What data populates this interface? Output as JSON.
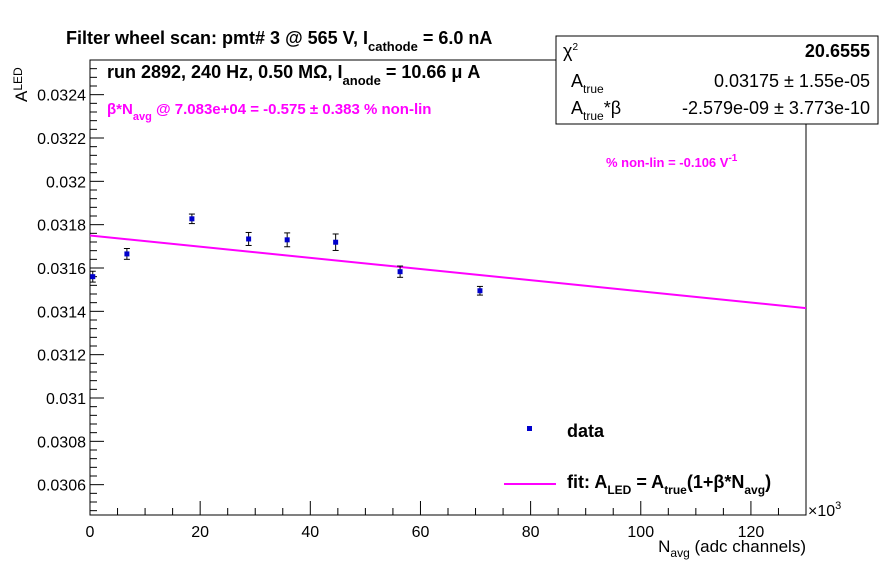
{
  "chart_data": {
    "type": "scatter",
    "title_parts": {
      "line1_a": "Filter wheel scan: pmt#   3 @   565 V, I",
      "line1_sub": "cathode",
      "line1_b": " = 6.0 nA",
      "line2_a": "run 2892, 240 Hz, 0.50 MΩ, I",
      "line2_sub": "anode",
      "line2_b": " = 10.66 μ A"
    },
    "annotation_beta": {
      "a": "β*N",
      "sub": "avg",
      "b": " @ 7.083e+04 = -0.575 ± 0.383 % non-lin"
    },
    "annotation_nonlin": {
      "a": "% non-lin = -0.106 V",
      "sup": "-1"
    },
    "ylabel": {
      "a": "A",
      "sub": "LED"
    },
    "xlabel": {
      "a": "N",
      "sub": "avg",
      "b": " (adc channels)"
    },
    "x_multiplier": "×10",
    "x_multiplier_exp": "3",
    "xlim": [
      0,
      130000
    ],
    "ylim": [
      0.03046,
      0.03256
    ],
    "x_ticks": [
      0,
      20000,
      40000,
      60000,
      80000,
      100000,
      120000
    ],
    "x_tick_labels": [
      "0",
      "20",
      "40",
      "60",
      "80",
      "100",
      "120"
    ],
    "y_ticks": [
      0.0306,
      0.0308,
      0.031,
      0.0312,
      0.0314,
      0.0316,
      0.0318,
      0.032,
      0.0322,
      0.0324
    ],
    "y_tick_labels": [
      "0.0306",
      "0.0308",
      "0.031",
      "0.0312",
      "0.0314",
      "0.0316",
      "0.0318",
      "0.032",
      "0.0322",
      "0.0324"
    ],
    "series": [
      {
        "name": "data",
        "color": "#0000cc",
        "points": [
          {
            "x": 500,
            "y": 0.03156,
            "err": 2.5e-05
          },
          {
            "x": 6700,
            "y": 0.031665,
            "err": 2.5e-05
          },
          {
            "x": 18500,
            "y": 0.031827,
            "err": 2.2e-05
          },
          {
            "x": 28800,
            "y": 0.031734,
            "err": 3e-05
          },
          {
            "x": 35800,
            "y": 0.03173,
            "err": 3.2e-05
          },
          {
            "x": 44600,
            "y": 0.031719,
            "err": 3.8e-05
          },
          {
            "x": 56300,
            "y": 0.031583,
            "err": 2.6e-05
          },
          {
            "x": 70800,
            "y": 0.031495,
            "err": 2e-05
          }
        ]
      }
    ],
    "fit": {
      "color": "#ff00ff",
      "a_true": 0.03175,
      "beta_times_a": -2.579e-09,
      "x_range": [
        0,
        130000
      ]
    },
    "stats": {
      "chi2_label": "χ",
      "chi2_sup": "2",
      "chi2_value": "20.6555",
      "atrue_label": "A",
      "atrue_sub": "true",
      "atrue_value": "0.03175 ± 1.55e-05",
      "atb_label": "A",
      "atb_sub": "true",
      "atb_mid": "*β",
      "atb_value": "-2.579e-09 ± 3.773e-10"
    },
    "legend": {
      "data_label": "data",
      "fit_a": "fit: A",
      "fit_sub1": "LED",
      "fit_b": " = A",
      "fit_sub2": "true",
      "fit_c": "(1+β*N",
      "fit_sub3": "avg",
      "fit_d": ")"
    }
  }
}
